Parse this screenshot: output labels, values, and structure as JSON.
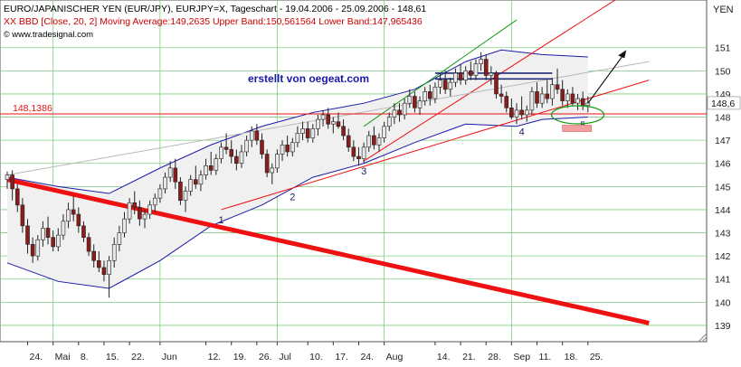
{
  "header": {
    "title": "EURO/JAPANISCHER YEN (EUR/JPY), EURJPY=X, Tageschart - 19.04.2006 - 25.09.2006 - 148,61",
    "indicator": "XX BBD [Close, 20, 2] Moving Average:149,2635 Upper Band:150,561564 Lower Band:147,965436",
    "source": "www.tradesignal.com",
    "copyright_symbol": "©"
  },
  "annotations": {
    "watermark": "erstellt von oegeat.com",
    "support_level_label": "148,1386",
    "last_price_label": "148,6",
    "wave_labels": [
      "1",
      "2",
      "3",
      "4",
      "5"
    ]
  },
  "colors": {
    "up_candle": "#e8e8e8",
    "down_candle": "#8a1c1c",
    "bollinger_band": "#1a1aa8",
    "band_fill": "#f0f0f0",
    "red_trendline": "#ee1111",
    "green_channel_line": "#119911",
    "grey_trendline": "#b8b8b8",
    "horizontal_resistance": "#1e2a78",
    "target_box": "#f4a0a0",
    "grid": "#7fce7f"
  },
  "chart_data": {
    "type": "candlestick",
    "title": "EURO/JAPANISCHER YEN (EUR/JPY), EURJPY=X, Tageschart - 19.04.2006 - 25.09.2006 - 148,61",
    "y_axis_label": "YEN",
    "ylim": [
      138,
      152
    ],
    "y_ticks": [
      139,
      140,
      141,
      142,
      143,
      144,
      145,
      146,
      147,
      148,
      149,
      150,
      151
    ],
    "x_tick_labels": [
      "24.",
      "Mai",
      "8.",
      "15.",
      "22.",
      "Jun",
      "12.",
      "19.",
      "26.",
      "Jul",
      "10.",
      "17.",
      "24.",
      "Aug",
      "14.",
      "21.",
      "28.",
      "Sep",
      "11.",
      "18.",
      "25."
    ],
    "x_tick_bar_index": [
      4,
      9,
      14,
      19,
      24,
      30,
      39,
      44,
      49,
      53,
      59,
      64,
      69,
      74,
      84,
      89,
      94,
      99,
      104,
      109,
      114
    ],
    "month_separators_bar_index": [
      9,
      30,
      53,
      74,
      99
    ],
    "grid": true,
    "support_level": 148.1386,
    "last_close": 148.61,
    "bar_count": 115,
    "ohlc": [
      [
        145.3,
        145.65,
        144.9,
        145.5
      ],
      [
        145.5,
        145.7,
        144.4,
        144.9
      ],
      [
        144.9,
        145.1,
        143.9,
        144.2
      ],
      [
        144.2,
        144.5,
        143.0,
        143.3
      ],
      [
        143.3,
        143.6,
        142.1,
        142.5
      ],
      [
        142.5,
        142.8,
        141.7,
        142.0
      ],
      [
        142.0,
        142.9,
        141.8,
        142.7
      ],
      [
        142.7,
        143.5,
        142.4,
        143.2
      ],
      [
        143.2,
        143.7,
        142.5,
        142.8
      ],
      [
        142.8,
        143.1,
        142.2,
        142.4
      ],
      [
        142.4,
        143.2,
        142.2,
        142.9
      ],
      [
        142.9,
        143.8,
        142.7,
        143.5
      ],
      [
        143.5,
        144.3,
        143.2,
        144.0
      ],
      [
        144.0,
        144.6,
        143.5,
        143.8
      ],
      [
        143.8,
        144.1,
        143.0,
        143.3
      ],
      [
        143.3,
        143.5,
        142.6,
        142.8
      ],
      [
        142.8,
        143.0,
        142.0,
        142.2
      ],
      [
        142.2,
        142.5,
        141.5,
        141.8
      ],
      [
        141.8,
        142.2,
        141.3,
        141.5
      ],
      [
        141.5,
        141.8,
        140.9,
        141.2
      ],
      [
        141.2,
        142.0,
        140.2,
        141.8
      ],
      [
        141.8,
        142.8,
        141.5,
        142.5
      ],
      [
        142.5,
        143.3,
        142.2,
        143.0
      ],
      [
        143.0,
        143.9,
        142.8,
        143.6
      ],
      [
        143.6,
        144.5,
        143.4,
        144.3
      ],
      [
        144.3,
        144.8,
        143.8,
        144.1
      ],
      [
        144.1,
        144.4,
        143.3,
        143.6
      ],
      [
        143.6,
        144.0,
        143.2,
        143.8
      ],
      [
        143.8,
        144.4,
        143.6,
        144.2
      ],
      [
        144.2,
        144.7,
        143.9,
        144.5
      ],
      [
        144.5,
        145.1,
        144.3,
        144.9
      ],
      [
        144.9,
        145.6,
        144.7,
        145.4
      ],
      [
        145.4,
        146.1,
        145.2,
        145.8
      ],
      [
        145.8,
        146.2,
        144.9,
        145.2
      ],
      [
        145.2,
        145.4,
        144.2,
        144.4
      ],
      [
        144.4,
        145.0,
        143.9,
        144.8
      ],
      [
        144.8,
        145.5,
        144.6,
        145.3
      ],
      [
        145.3,
        145.9,
        144.9,
        145.1
      ],
      [
        145.1,
        145.7,
        144.8,
        145.5
      ],
      [
        145.5,
        146.2,
        145.3,
        145.9
      ],
      [
        145.9,
        146.5,
        145.5,
        145.7
      ],
      [
        145.7,
        146.4,
        145.5,
        146.2
      ],
      [
        146.2,
        146.9,
        146.0,
        146.7
      ],
      [
        146.7,
        147.3,
        146.4,
        146.6
      ],
      [
        146.6,
        147.0,
        146.0,
        146.3
      ],
      [
        146.3,
        146.6,
        145.7,
        146.0
      ],
      [
        146.0,
        146.8,
        145.8,
        146.5
      ],
      [
        146.5,
        147.2,
        146.3,
        147.0
      ],
      [
        147.0,
        147.6,
        146.7,
        147.4
      ],
      [
        147.4,
        147.7,
        146.8,
        147.0
      ],
      [
        147.0,
        147.3,
        146.2,
        146.4
      ],
      [
        146.4,
        146.6,
        145.4,
        145.6
      ],
      [
        145.6,
        146.0,
        145.1,
        145.8
      ],
      [
        145.8,
        146.6,
        145.6,
        146.4
      ],
      [
        146.4,
        147.0,
        146.1,
        146.8
      ],
      [
        146.8,
        147.2,
        146.3,
        146.5
      ],
      [
        146.5,
        147.1,
        146.3,
        146.9
      ],
      [
        146.9,
        147.6,
        146.7,
        147.3
      ],
      [
        147.3,
        147.8,
        147.0,
        147.5
      ],
      [
        147.5,
        147.8,
        146.9,
        147.1
      ],
      [
        147.1,
        147.7,
        146.9,
        147.5
      ],
      [
        147.5,
        148.1,
        147.2,
        147.9
      ],
      [
        147.9,
        148.3,
        147.6,
        148.1
      ],
      [
        148.1,
        148.4,
        147.5,
        147.7
      ],
      [
        147.7,
        148.0,
        147.3,
        147.8
      ],
      [
        147.8,
        148.2,
        147.5,
        147.6
      ],
      [
        147.6,
        147.9,
        147.0,
        147.2
      ],
      [
        147.2,
        147.5,
        146.5,
        146.7
      ],
      [
        146.7,
        147.0,
        146.1,
        146.3
      ],
      [
        146.3,
        146.7,
        145.9,
        146.2
      ],
      [
        146.2,
        146.9,
        146.0,
        146.7
      ],
      [
        146.7,
        147.4,
        146.5,
        147.2
      ],
      [
        147.2,
        147.6,
        146.6,
        146.8
      ],
      [
        146.8,
        147.3,
        146.5,
        147.1
      ],
      [
        147.1,
        147.8,
        146.9,
        147.6
      ],
      [
        147.6,
        148.2,
        147.4,
        148.0
      ],
      [
        148.0,
        148.6,
        147.7,
        148.3
      ],
      [
        148.3,
        148.6,
        147.8,
        148.1
      ],
      [
        148.1,
        148.8,
        147.9,
        148.6
      ],
      [
        148.6,
        149.2,
        148.4,
        148.9
      ],
      [
        148.9,
        149.1,
        148.2,
        148.4
      ],
      [
        148.4,
        148.9,
        148.1,
        148.7
      ],
      [
        148.7,
        149.3,
        148.5,
        149.1
      ],
      [
        149.1,
        149.4,
        148.5,
        148.8
      ],
      [
        148.8,
        149.5,
        148.6,
        149.3
      ],
      [
        149.3,
        149.9,
        149.0,
        149.6
      ],
      [
        149.6,
        150.0,
        149.0,
        149.2
      ],
      [
        149.2,
        149.7,
        148.9,
        149.5
      ],
      [
        149.5,
        150.1,
        149.3,
        149.9
      ],
      [
        149.9,
        150.3,
        149.4,
        149.6
      ],
      [
        149.6,
        150.2,
        149.4,
        150.0
      ],
      [
        150.0,
        150.4,
        149.6,
        149.8
      ],
      [
        149.8,
        150.5,
        149.6,
        150.3
      ],
      [
        150.3,
        150.8,
        150.0,
        150.5
      ],
      [
        150.5,
        150.7,
        149.6,
        149.8
      ],
      [
        149.8,
        150.2,
        149.4,
        149.9
      ],
      [
        149.9,
        150.0,
        148.8,
        149.0
      ],
      [
        149.0,
        149.4,
        148.6,
        148.9
      ],
      [
        148.9,
        149.1,
        148.2,
        148.4
      ],
      [
        148.4,
        148.8,
        147.9,
        148.0
      ],
      [
        148.0,
        148.6,
        147.7,
        148.3
      ],
      [
        148.3,
        148.9,
        147.9,
        148.1
      ],
      [
        148.1,
        148.5,
        147.8,
        148.3
      ],
      [
        148.3,
        149.3,
        148.1,
        149.1
      ],
      [
        149.1,
        149.5,
        148.4,
        148.6
      ],
      [
        148.6,
        149.3,
        148.4,
        149.0
      ],
      [
        149.0,
        149.6,
        148.6,
        148.8
      ],
      [
        148.8,
        149.7,
        148.5,
        149.4
      ],
      [
        149.4,
        150.1,
        149.0,
        149.2
      ],
      [
        149.2,
        149.6,
        148.5,
        148.7
      ],
      [
        148.7,
        149.2,
        148.4,
        149.0
      ],
      [
        149.0,
        149.3,
        148.5,
        148.6
      ],
      [
        148.6,
        149.0,
        148.3,
        148.8
      ],
      [
        148.8,
        149.1,
        148.3,
        148.5
      ],
      [
        148.5,
        148.9,
        148.2,
        148.61
      ]
    ],
    "bollinger": {
      "period": 20,
      "stddev": 2,
      "moving_average_last": 149.2635,
      "upper_band_last": 150.561564,
      "lower_band_last": 147.965436,
      "upper_band": [
        [
          0,
          145.4
        ],
        [
          10,
          145.0
        ],
        [
          20,
          144.7
        ],
        [
          30,
          145.8
        ],
        [
          40,
          146.8
        ],
        [
          50,
          147.6
        ],
        [
          60,
          148.2
        ],
        [
          70,
          148.6
        ],
        [
          80,
          149.2
        ],
        [
          90,
          150.4
        ],
        [
          97,
          150.9
        ],
        [
          105,
          150.7
        ],
        [
          114,
          150.6
        ]
      ],
      "lower_band": [
        [
          0,
          141.7
        ],
        [
          10,
          140.9
        ],
        [
          20,
          140.6
        ],
        [
          30,
          141.8
        ],
        [
          40,
          143.3
        ],
        [
          50,
          144.2
        ],
        [
          60,
          145.4
        ],
        [
          70,
          146.0
        ],
        [
          80,
          146.9
        ],
        [
          90,
          147.7
        ],
        [
          100,
          147.6
        ],
        [
          105,
          147.9
        ],
        [
          114,
          148.0
        ]
      ]
    },
    "trendlines": [
      {
        "name": "major-down",
        "color": "#ee1111",
        "points": [
          [
            0,
            145.3
          ],
          [
            126,
            139.1
          ]
        ],
        "width": "thick"
      },
      {
        "name": "up-support",
        "color": "#ee1111",
        "points": [
          [
            42,
            144.0
          ],
          [
            126,
            149.6
          ]
        ]
      },
      {
        "name": "steep-up",
        "color": "#ee1111",
        "points": [
          [
            70,
            146.1
          ],
          [
            126,
            154.0
          ]
        ]
      },
      {
        "name": "green-channel",
        "color": "#119911",
        "points": [
          [
            70,
            147.6
          ],
          [
            100,
            152.2
          ]
        ]
      },
      {
        "name": "grey-upper",
        "color": "#b8b8b8",
        "points": [
          [
            0,
            145.5
          ],
          [
            126,
            150.4
          ]
        ]
      },
      {
        "name": "resistance-upper",
        "color": "#1e2a78",
        "points": [
          [
            84,
            149.9
          ],
          [
            107,
            149.9
          ]
        ]
      },
      {
        "name": "resistance-lower",
        "color": "#1e2a78",
        "points": [
          [
            84,
            149.65
          ],
          [
            107,
            149.65
          ]
        ]
      }
    ],
    "wave_points": [
      {
        "label": "1",
        "bar": 42,
        "price": 144.0
      },
      {
        "label": "2",
        "bar": 56,
        "price": 145.0
      },
      {
        "label": "3",
        "bar": 70,
        "price": 146.1
      },
      {
        "label": "4",
        "bar": 101,
        "price": 147.8
      },
      {
        "label": "5",
        "bar": 113,
        "price": 148.1
      }
    ]
  }
}
